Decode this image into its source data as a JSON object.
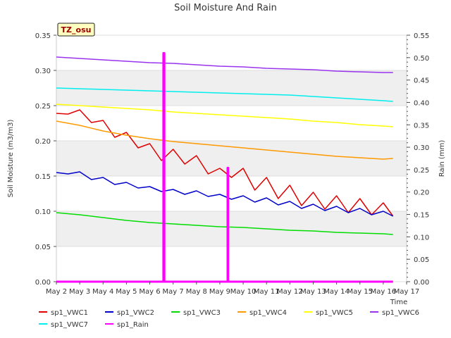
{
  "chart_data": {
    "type": "line",
    "title": "Soil Moisture And Rain",
    "site_label": "TZ_osu",
    "xlabel": "Time",
    "ylabel": "Soil Moisture (m3/m3)",
    "y2label": "Rain (mm)",
    "x_ticks": [
      "May 2",
      "May 3",
      "May 4",
      "May 5",
      "May 6",
      "May 7",
      "May 8",
      "May 9",
      "May 10",
      "May 11",
      "May 12",
      "May 13",
      "May 14",
      "May 15",
      "May 16",
      "May 17"
    ],
    "ylim": [
      0,
      0.35
    ],
    "y_ticks": [
      "0.00",
      "0.05",
      "0.10",
      "0.15",
      "0.20",
      "0.25",
      "0.30",
      "0.35"
    ],
    "y2lim": [
      0,
      0.55
    ],
    "y2_ticks": [
      "0.00",
      "0.05",
      "0.10",
      "0.15",
      "0.20",
      "0.25",
      "0.30",
      "0.35",
      "0.40",
      "0.45",
      "0.50",
      "0.55"
    ],
    "legend_placement": "bottom",
    "series": [
      {
        "name": "sp1_VWC1",
        "color": "#e00000",
        "axis": "left",
        "points": [
          [
            "May 2",
            0.239
          ],
          [
            "May 2 12:00",
            0.238
          ],
          [
            "May 3",
            0.244
          ],
          [
            "May 3 12:00",
            0.226
          ],
          [
            "May 4",
            0.229
          ],
          [
            "May 4 12:00",
            0.205
          ],
          [
            "May 5",
            0.212
          ],
          [
            "May 5 12:00",
            0.19
          ],
          [
            "May 6",
            0.196
          ],
          [
            "May 6 12:00",
            0.172
          ],
          [
            "May 7",
            0.188
          ],
          [
            "May 7 12:00",
            0.167
          ],
          [
            "May 8",
            0.179
          ],
          [
            "May 8 12:00",
            0.153
          ],
          [
            "May 9",
            0.161
          ],
          [
            "May 9 12:00",
            0.148
          ],
          [
            "May 10",
            0.161
          ],
          [
            "May 10 12:00",
            0.13
          ],
          [
            "May 11",
            0.148
          ],
          [
            "May 11 12:00",
            0.118
          ],
          [
            "May 12",
            0.137
          ],
          [
            "May 12 12:00",
            0.108
          ],
          [
            "May 13",
            0.127
          ],
          [
            "May 13 12:00",
            0.103
          ],
          [
            "May 14",
            0.122
          ],
          [
            "May 14 12:00",
            0.098
          ],
          [
            "May 15",
            0.118
          ],
          [
            "May 15 12:00",
            0.095
          ],
          [
            "May 16",
            0.112
          ],
          [
            "May 16 10:00",
            0.093
          ]
        ]
      },
      {
        "name": "sp1_VWC2",
        "color": "#0000cc",
        "axis": "left",
        "points": [
          [
            "May 2",
            0.155
          ],
          [
            "May 2 12:00",
            0.153
          ],
          [
            "May 3",
            0.156
          ],
          [
            "May 3 12:00",
            0.145
          ],
          [
            "May 4",
            0.148
          ],
          [
            "May 4 12:00",
            0.138
          ],
          [
            "May 5",
            0.141
          ],
          [
            "May 5 12:00",
            0.133
          ],
          [
            "May 6",
            0.135
          ],
          [
            "May 6 12:00",
            0.128
          ],
          [
            "May 7",
            0.131
          ],
          [
            "May 7 12:00",
            0.124
          ],
          [
            "May 8",
            0.129
          ],
          [
            "May 8 12:00",
            0.121
          ],
          [
            "May 9",
            0.124
          ],
          [
            "May 9 12:00",
            0.117
          ],
          [
            "May 10",
            0.122
          ],
          [
            "May 10 12:00",
            0.113
          ],
          [
            "May 11",
            0.119
          ],
          [
            "May 11 12:00",
            0.109
          ],
          [
            "May 12",
            0.114
          ],
          [
            "May 12 12:00",
            0.104
          ],
          [
            "May 13",
            0.11
          ],
          [
            "May 13 12:00",
            0.101
          ],
          [
            "May 14",
            0.107
          ],
          [
            "May 14 12:00",
            0.098
          ],
          [
            "May 15",
            0.104
          ],
          [
            "May 15 12:00",
            0.095
          ],
          [
            "May 16",
            0.1
          ],
          [
            "May 16 10:00",
            0.093
          ]
        ]
      },
      {
        "name": "sp1_VWC3",
        "color": "#00dd00",
        "axis": "left",
        "points": [
          [
            "May 2",
            0.098
          ],
          [
            "May 3",
            0.095
          ],
          [
            "May 4",
            0.091
          ],
          [
            "May 5",
            0.087
          ],
          [
            "May 6",
            0.084
          ],
          [
            "May 7",
            0.082
          ],
          [
            "May 8",
            0.08
          ],
          [
            "May 9",
            0.078
          ],
          [
            "May 10",
            0.077
          ],
          [
            "May 11",
            0.075
          ],
          [
            "May 12",
            0.073
          ],
          [
            "May 13",
            0.072
          ],
          [
            "May 14",
            0.07
          ],
          [
            "May 15",
            0.069
          ],
          [
            "May 16",
            0.068
          ],
          [
            "May 16 10:00",
            0.067
          ]
        ]
      },
      {
        "name": "sp1_VWC4",
        "color": "#ff9900",
        "axis": "left",
        "points": [
          [
            "May 2",
            0.228
          ],
          [
            "May 3",
            0.222
          ],
          [
            "May 4",
            0.214
          ],
          [
            "May 5",
            0.208
          ],
          [
            "May 6",
            0.203
          ],
          [
            "May 7",
            0.199
          ],
          [
            "May 8",
            0.196
          ],
          [
            "May 9",
            0.193
          ],
          [
            "May 10",
            0.19
          ],
          [
            "May 11",
            0.187
          ],
          [
            "May 12",
            0.184
          ],
          [
            "May 13",
            0.181
          ],
          [
            "May 14",
            0.178
          ],
          [
            "May 15",
            0.176
          ],
          [
            "May 16",
            0.174
          ],
          [
            "May 16 10:00",
            0.175
          ]
        ]
      },
      {
        "name": "sp1_VWC5",
        "color": "#ffff00",
        "axis": "left",
        "points": [
          [
            "May 2",
            0.252
          ],
          [
            "May 3",
            0.25
          ],
          [
            "May 4",
            0.248
          ],
          [
            "May 5",
            0.246
          ],
          [
            "May 6",
            0.244
          ],
          [
            "May 7",
            0.241
          ],
          [
            "May 8",
            0.239
          ],
          [
            "May 9",
            0.237
          ],
          [
            "May 10",
            0.235
          ],
          [
            "May 11",
            0.233
          ],
          [
            "May 12",
            0.231
          ],
          [
            "May 13",
            0.228
          ],
          [
            "May 14",
            0.226
          ],
          [
            "May 15",
            0.223
          ],
          [
            "May 16",
            0.221
          ],
          [
            "May 16 10:00",
            0.22
          ]
        ]
      },
      {
        "name": "sp1_VWC6",
        "color": "#9933ee",
        "axis": "left",
        "points": [
          [
            "May 2",
            0.319
          ],
          [
            "May 3",
            0.317
          ],
          [
            "May 4",
            0.315
          ],
          [
            "May 5",
            0.313
          ],
          [
            "May 6",
            0.311
          ],
          [
            "May 7",
            0.31
          ],
          [
            "May 8",
            0.308
          ],
          [
            "May 9",
            0.306
          ],
          [
            "May 10",
            0.305
          ],
          [
            "May 11",
            0.303
          ],
          [
            "May 12",
            0.302
          ],
          [
            "May 13",
            0.301
          ],
          [
            "May 14",
            0.299
          ],
          [
            "May 15",
            0.298
          ],
          [
            "May 16",
            0.297
          ],
          [
            "May 16 10:00",
            0.297
          ]
        ]
      },
      {
        "name": "sp1_VWC7",
        "color": "#00eeee",
        "axis": "left",
        "points": [
          [
            "May 2",
            0.275
          ],
          [
            "May 3",
            0.274
          ],
          [
            "May 4",
            0.273
          ],
          [
            "May 5",
            0.272
          ],
          [
            "May 6",
            0.271
          ],
          [
            "May 7",
            0.27
          ],
          [
            "May 8",
            0.269
          ],
          [
            "May 9",
            0.268
          ],
          [
            "May 10",
            0.267
          ],
          [
            "May 11",
            0.266
          ],
          [
            "May 12",
            0.265
          ],
          [
            "May 13",
            0.263
          ],
          [
            "May 14",
            0.261
          ],
          [
            "May 15",
            0.259
          ],
          [
            "May 16",
            0.257
          ],
          [
            "May 16 10:00",
            0.256
          ]
        ]
      },
      {
        "name": "sp1_Rain",
        "color": "#ff00ff",
        "axis": "right",
        "points": [
          [
            "May 2",
            0.0
          ],
          [
            "May 6 14:00",
            0.0
          ],
          [
            "May 6 14:00",
            0.51
          ],
          [
            "May 6 15:00",
            0.51
          ],
          [
            "May 6 15:00",
            0.0
          ],
          [
            "May 9 08:00",
            0.0
          ],
          [
            "May 9 08:00",
            0.254
          ],
          [
            "May 9 08:30",
            0.254
          ],
          [
            "May 9 08:30",
            0.0
          ],
          [
            "May 16 10:00",
            0.0
          ]
        ]
      }
    ]
  }
}
